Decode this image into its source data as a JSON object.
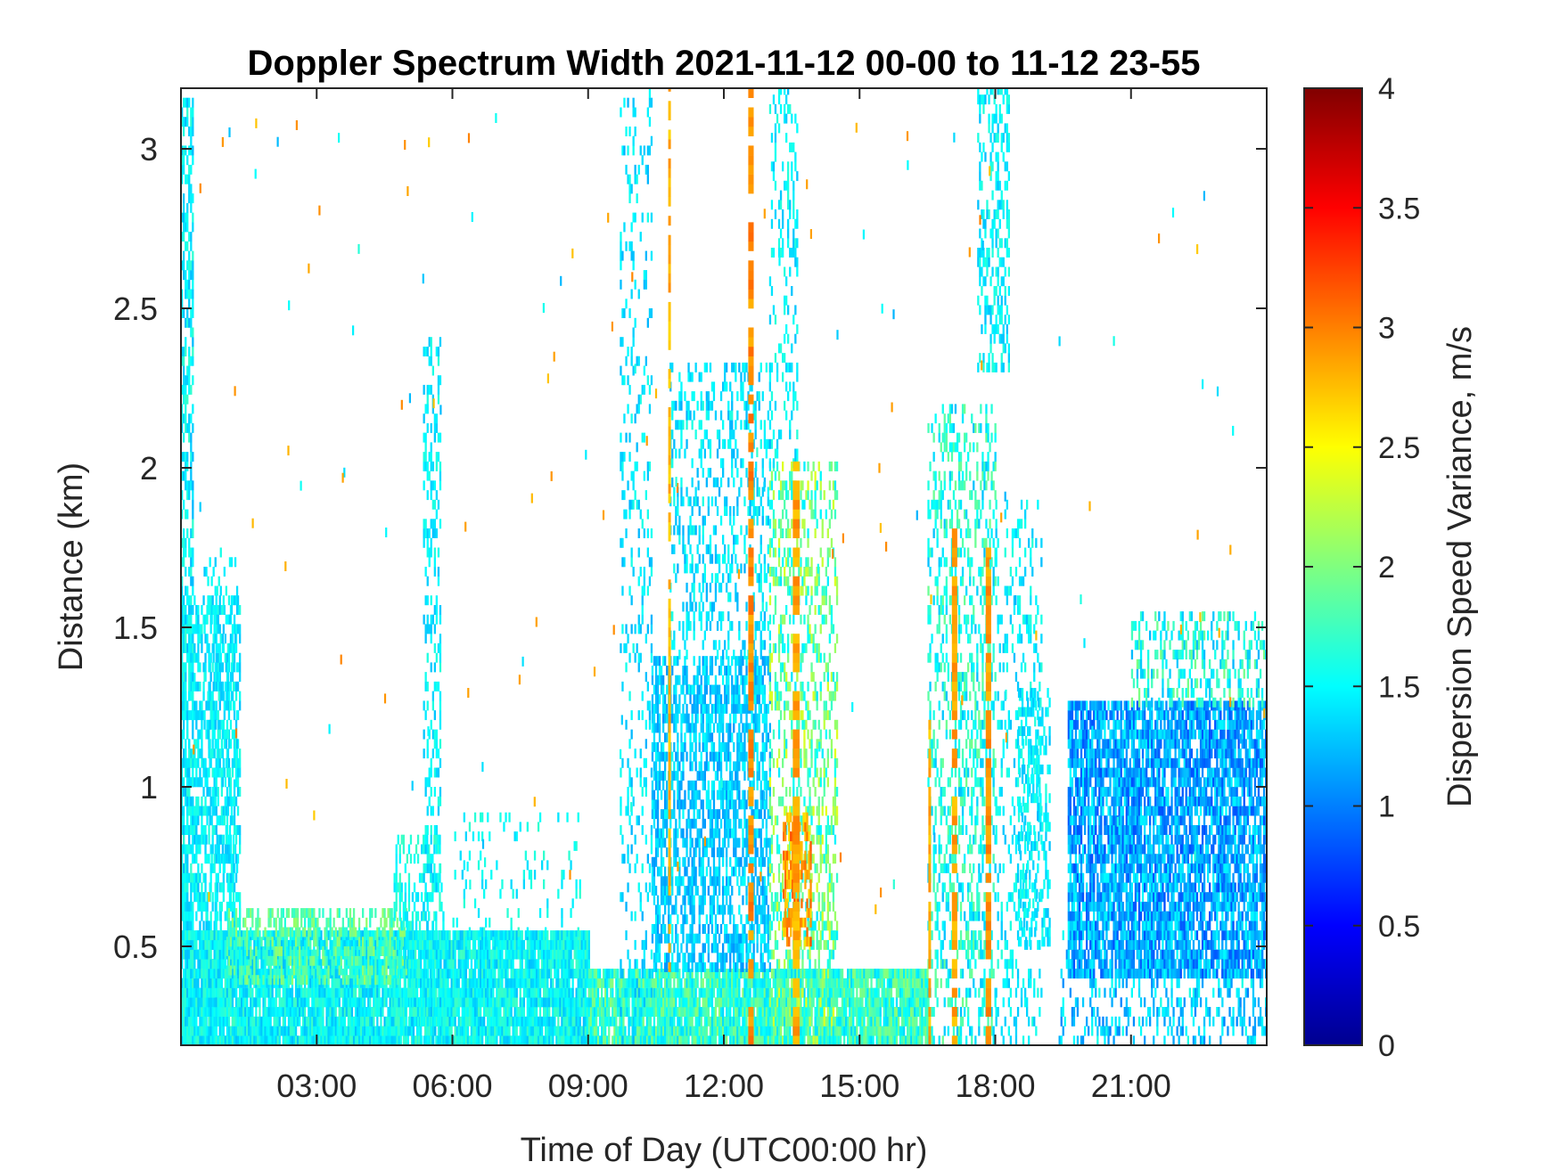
{
  "chart_data": {
    "type": "heatmap",
    "title": "Doppler Spectrum Width 2021-11-12 00-00 to 11-12 23-55",
    "xlabel": "Time of Day (UTC00:00 hr)",
    "ylabel": "Distance (km)",
    "x_ticks": [
      "03:00",
      "06:00",
      "09:00",
      "12:00",
      "15:00",
      "18:00",
      "21:00"
    ],
    "x_tick_hours": [
      3,
      6,
      9,
      12,
      15,
      18,
      21
    ],
    "xlim": [
      0,
      24
    ],
    "y_ticks": [
      "0.5",
      "1",
      "1.5",
      "2",
      "2.5",
      "3"
    ],
    "y_tick_values": [
      0.5,
      1,
      1.5,
      2,
      2.5,
      3
    ],
    "ylim": [
      0.19,
      3.19
    ],
    "colorbar": {
      "label": "Dispersion Speed Variance, m/s",
      "ticks": [
        "0",
        "0.5",
        "1",
        "1.5",
        "2",
        "2.5",
        "3",
        "3.5",
        "4"
      ],
      "tick_values": [
        0,
        0.5,
        1,
        1.5,
        2,
        2.5,
        3,
        3.5,
        4
      ],
      "range": [
        0,
        4
      ],
      "colormap": "jet"
    },
    "colors": {
      "axis": "#262626",
      "background": "#ffffff"
    },
    "regions": [
      {
        "t0": 0.0,
        "t1": 0.28,
        "h0": 0.19,
        "h1": 3.15,
        "v": 1.45,
        "d": 0.55,
        "spread": 0.25
      },
      {
        "t0": 0.0,
        "t1": 1.3,
        "h0": 0.19,
        "h1": 1.6,
        "v": 1.45,
        "d": 0.55,
        "spread": 0.2
      },
      {
        "t0": 0.5,
        "t1": 1.25,
        "h0": 0.19,
        "h1": 1.75,
        "v": 1.45,
        "d": 0.25,
        "spread": 0.2
      },
      {
        "t0": 0.0,
        "t1": 9.0,
        "h0": 0.19,
        "h1": 0.55,
        "v": 1.5,
        "d": 0.92,
        "spread": 0.25
      },
      {
        "t0": 1.0,
        "t1": 5.0,
        "h0": 0.38,
        "h1": 0.62,
        "v": 1.85,
        "d": 0.5,
        "spread": 0.25
      },
      {
        "t0": 9.0,
        "t1": 16.5,
        "h0": 0.19,
        "h1": 0.42,
        "v": 1.7,
        "d": 0.92,
        "spread": 0.35
      },
      {
        "t0": 4.7,
        "t1": 5.8,
        "h0": 0.19,
        "h1": 0.85,
        "v": 1.55,
        "d": 0.35,
        "spread": 0.2
      },
      {
        "t0": 5.35,
        "t1": 5.75,
        "h0": 0.19,
        "h1": 2.4,
        "v": 1.45,
        "d": 0.3,
        "spread": 0.2
      },
      {
        "t0": 6.0,
        "t1": 8.8,
        "h0": 0.5,
        "h1": 0.9,
        "v": 1.5,
        "d": 0.1,
        "spread": 0.2
      },
      {
        "t0": 9.7,
        "t1": 10.4,
        "h0": 0.19,
        "h1": 3.19,
        "v": 1.4,
        "d": 0.18,
        "spread": 0.2
      },
      {
        "t0": 10.4,
        "t1": 13.0,
        "h0": 0.42,
        "h1": 1.4,
        "v": 1.3,
        "d": 0.6,
        "spread": 0.22
      },
      {
        "t0": 10.8,
        "t1": 13.0,
        "h0": 1.4,
        "h1": 2.3,
        "v": 1.4,
        "d": 0.3,
        "spread": 0.22
      },
      {
        "t0": 13.0,
        "t1": 14.5,
        "h0": 0.19,
        "h1": 2.0,
        "v": 1.9,
        "d": 0.35,
        "spread": 0.5
      },
      {
        "t0": 13.3,
        "t1": 13.9,
        "h0": 0.5,
        "h1": 0.9,
        "v": 2.9,
        "d": 0.6,
        "spread": 0.3
      },
      {
        "t0": 13.0,
        "t1": 13.6,
        "h0": 2.0,
        "h1": 3.19,
        "v": 1.45,
        "d": 0.25,
        "spread": 0.2
      },
      {
        "t0": 16.5,
        "t1": 18.0,
        "h0": 0.19,
        "h1": 2.2,
        "v": 1.6,
        "d": 0.35,
        "spread": 0.35
      },
      {
        "t0": 17.6,
        "t1": 18.3,
        "h0": 2.3,
        "h1": 3.19,
        "v": 1.45,
        "d": 0.4,
        "spread": 0.2
      },
      {
        "t0": 18.0,
        "t1": 19.0,
        "h0": 0.19,
        "h1": 1.9,
        "v": 1.45,
        "d": 0.2,
        "spread": 0.2
      },
      {
        "t0": 18.5,
        "t1": 19.2,
        "h0": 0.5,
        "h1": 1.3,
        "v": 1.45,
        "d": 0.4,
        "spread": 0.2
      },
      {
        "t0": 19.4,
        "t1": 24.0,
        "h0": 0.19,
        "h1": 0.55,
        "v": 1.3,
        "d": 0.3,
        "spread": 0.3
      },
      {
        "t0": 19.6,
        "t1": 24.0,
        "h0": 0.4,
        "h1": 1.25,
        "v": 1.15,
        "d": 0.8,
        "spread": 0.35
      },
      {
        "t0": 21.0,
        "t1": 24.0,
        "h0": 1.25,
        "h1": 1.55,
        "v": 1.6,
        "d": 0.35,
        "spread": 0.4
      }
    ],
    "streaks": [
      {
        "t": 12.6,
        "w": 0.12,
        "h0": 0.19,
        "h1": 3.19,
        "v": 2.95
      },
      {
        "t": 10.8,
        "w": 0.06,
        "h0": 0.42,
        "h1": 3.19,
        "v": 2.8
      },
      {
        "t": 13.6,
        "w": 0.15,
        "h0": 0.19,
        "h1": 2.0,
        "v": 2.85
      },
      {
        "t": 17.1,
        "w": 0.12,
        "h0": 0.19,
        "h1": 1.8,
        "v": 2.85
      },
      {
        "t": 17.85,
        "w": 0.12,
        "h0": 0.19,
        "h1": 1.75,
        "v": 2.9
      },
      {
        "t": 16.55,
        "w": 0.06,
        "h0": 0.19,
        "h1": 1.2,
        "v": 2.8
      }
    ]
  }
}
